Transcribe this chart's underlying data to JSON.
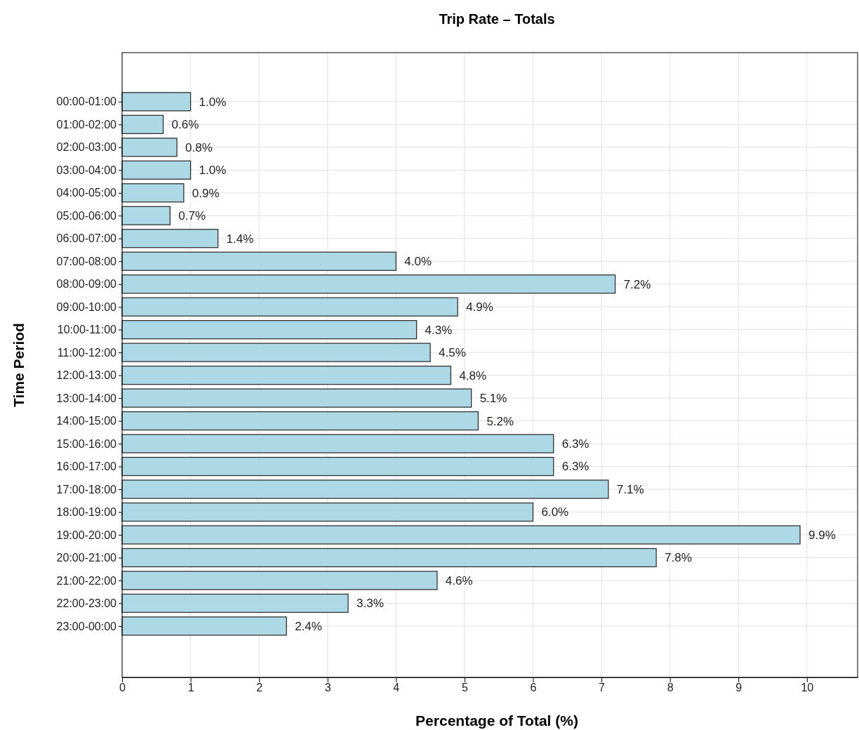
{
  "chart_data": {
    "type": "bar",
    "orientation": "horizontal",
    "title": "Trip Rate – Totals",
    "xlabel": "Percentage of Total (%)",
    "ylabel": "Time Period",
    "categories": [
      "00:00-01:00",
      "01:00-02:00",
      "02:00-03:00",
      "03:00-04:00",
      "04:00-05:00",
      "05:00-06:00",
      "06:00-07:00",
      "07:00-08:00",
      "08:00-09:00",
      "09:00-10:00",
      "10:00-11:00",
      "11:00-12:00",
      "12:00-13:00",
      "13:00-14:00",
      "14:00-15:00",
      "15:00-16:00",
      "16:00-17:00",
      "17:00-18:00",
      "18:00-19:00",
      "19:00-20:00",
      "20:00-21:00",
      "21:00-22:00",
      "22:00-23:00",
      "23:00-00:00"
    ],
    "values": [
      1.0,
      0.6,
      0.8,
      1.0,
      0.9,
      0.7,
      1.4,
      4.0,
      7.2,
      4.9,
      4.3,
      4.5,
      4.8,
      5.1,
      5.2,
      6.3,
      6.3,
      7.1,
      6.0,
      9.9,
      7.8,
      4.6,
      3.3,
      2.4
    ],
    "value_labels": [
      "1.0%",
      "0.6%",
      "0.8%",
      "1.0%",
      "0.9%",
      "0.7%",
      "1.4%",
      "4.0%",
      "7.2%",
      "4.9%",
      "4.3%",
      "4.5%",
      "4.8%",
      "5.1%",
      "5.2%",
      "6.3%",
      "6.3%",
      "7.1%",
      "6.0%",
      "9.9%",
      "7.8%",
      "4.6%",
      "3.3%",
      "2.4%"
    ],
    "color": "#add8e6",
    "xlim": [
      0,
      10.74
    ],
    "xticks": [
      0,
      1,
      2,
      3,
      4,
      5,
      6,
      7,
      8,
      9,
      10
    ],
    "grid": true
  }
}
